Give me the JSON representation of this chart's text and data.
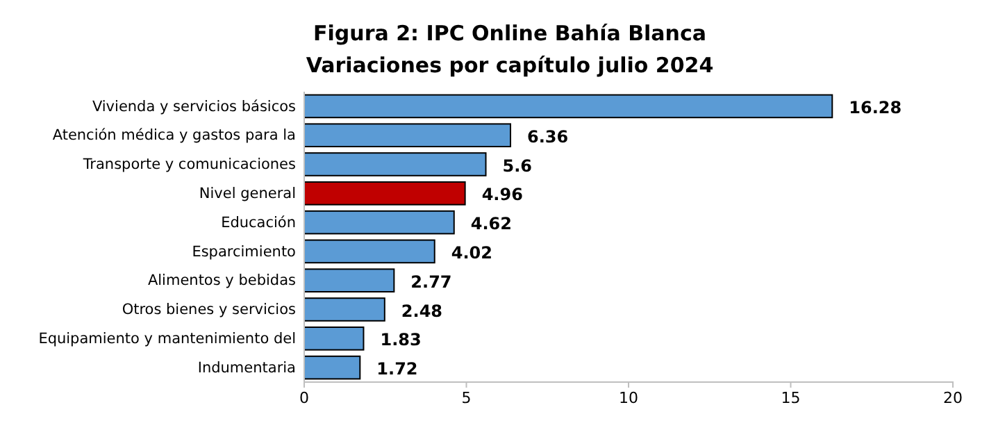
{
  "chart_data": {
    "type": "bar",
    "orientation": "horizontal",
    "title": "Figura 2: IPC Online Bahía Blanca",
    "subtitle": "Variaciones por capítulo julio 2024",
    "categories": [
      "Vivienda y servicios básicos",
      "Atención médica y gastos para la",
      "Transporte y comunicaciones",
      "Nivel general",
      "Educación",
      "Esparcimiento",
      "Alimentos y bebidas",
      "Otros bienes y servicios",
      "Equipamiento y mantenimiento del",
      "Indumentaria"
    ],
    "values": [
      16.28,
      6.36,
      5.6,
      4.96,
      4.62,
      4.02,
      2.77,
      2.48,
      1.83,
      1.72
    ],
    "colors": [
      "#5b9bd5",
      "#5b9bd5",
      "#5b9bd5",
      "#c00000",
      "#5b9bd5",
      "#5b9bd5",
      "#5b9bd5",
      "#5b9bd5",
      "#5b9bd5",
      "#5b9bd5"
    ],
    "xlim": [
      0,
      20
    ],
    "xticks": [
      0,
      5,
      10,
      15,
      20
    ],
    "grid": false,
    "data_labels": true
  }
}
